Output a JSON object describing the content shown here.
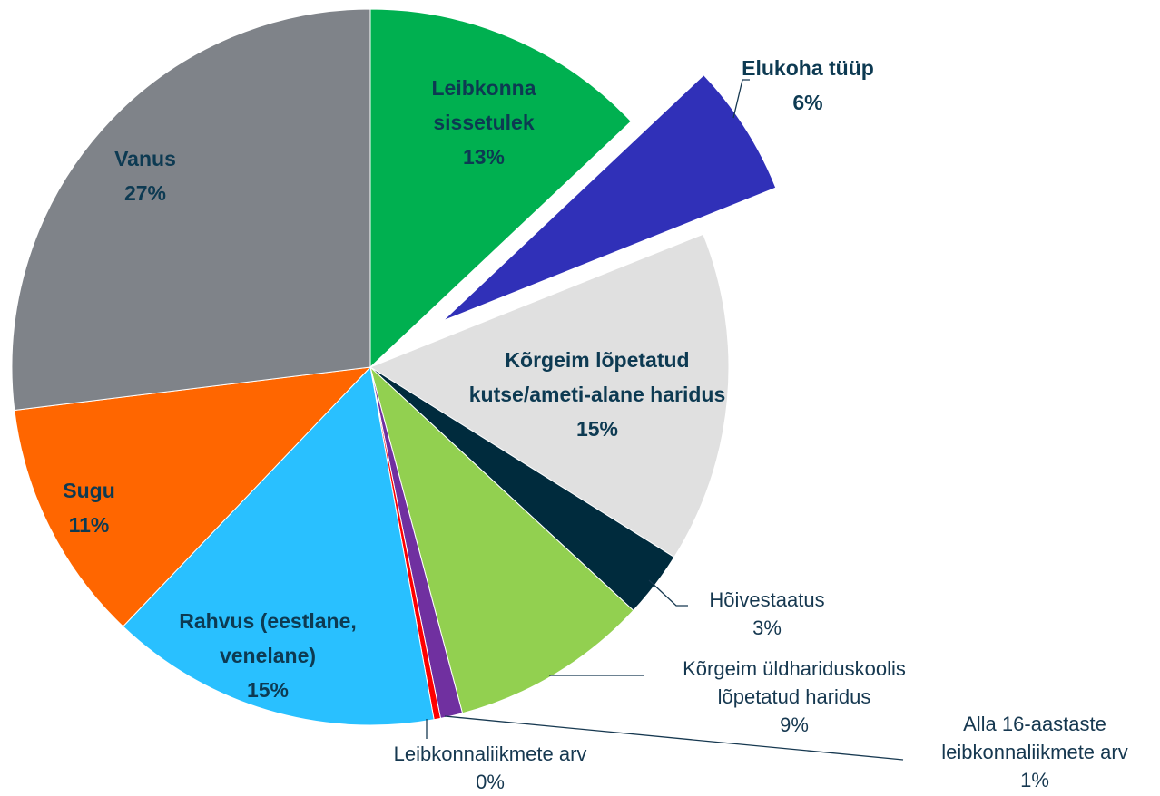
{
  "chart_data": {
    "type": "pie",
    "categories": [
      "Leibkonna sissetulek",
      "Elukoha tüüp",
      "Kõrgeim lõpetatud kutse/ameti-alane haridus",
      "Hõivestaatus",
      "Kõrgeim üldhariduskoolis lõpetatud haridus",
      "Alla 16-aastaste leibkonnaliikmete arv",
      "Leibkonnaliikmete arv",
      "Rahvus (eestlane, venelane)",
      "Sugu",
      "Vanus"
    ],
    "values": [
      13,
      6,
      15,
      3,
      9,
      1,
      0.3,
      15,
      11,
      27
    ],
    "value_labels": [
      "13%",
      "6%",
      "15%",
      "3%",
      "9%",
      "1%",
      "0%",
      "15%",
      "11%",
      "27%"
    ],
    "colors": [
      "#00b050",
      "#3030b8",
      "#e0e0e0",
      "#002b3d",
      "#92d050",
      "#7030a0",
      "#ff0000",
      "#29c0ff",
      "#ff6600",
      "#7f8389"
    ],
    "exploded": [
      1
    ]
  }
}
